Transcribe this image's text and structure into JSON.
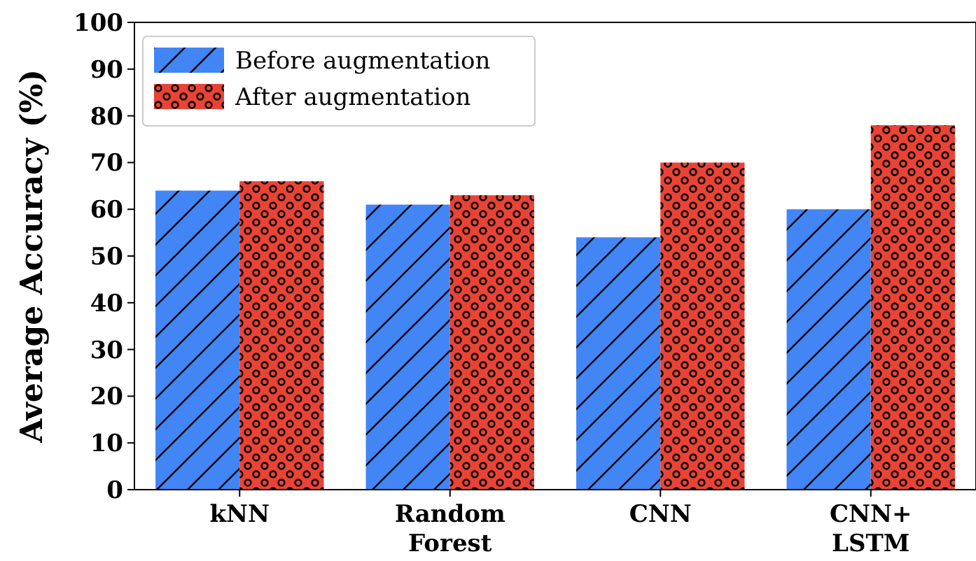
{
  "chart_data": {
    "type": "bar",
    "ylabel": "Average Accuracy (%)",
    "categories": [
      "kNN",
      "Random\nForest",
      "CNN",
      "CNN+\nLSTM"
    ],
    "series": [
      {
        "name": "Before augmentation",
        "color": "#4285f4",
        "values": [
          64,
          61,
          54,
          60
        ]
      },
      {
        "name": "After augmentation",
        "color": "#ea4335",
        "values": [
          66,
          63,
          70,
          78
        ]
      }
    ],
    "ylim": [
      0,
      100
    ],
    "yticks": [
      0,
      10,
      20,
      30,
      40,
      50,
      60,
      70,
      80,
      90,
      100
    ],
    "grid": false,
    "legend": "top left"
  }
}
